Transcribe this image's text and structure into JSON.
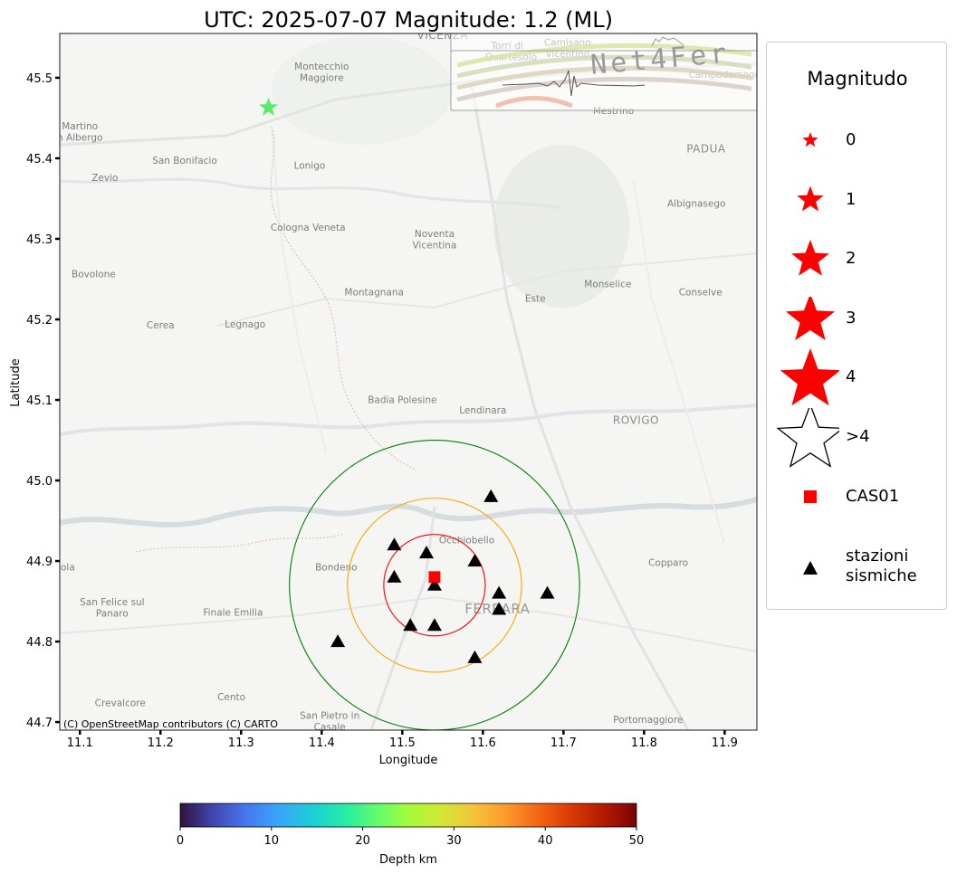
{
  "title": "UTC: 2025-07-07 Magnitude: 1.2 (ML)",
  "axes": {
    "xlabel": "Longitude",
    "ylabel": "Latitude",
    "xlim": [
      11.075,
      11.94
    ],
    "ylim": [
      44.69,
      45.555
    ],
    "xticks": [
      "11.1",
      "11.2",
      "11.3",
      "11.4",
      "11.5",
      "11.6",
      "11.7",
      "11.8",
      "11.9"
    ],
    "yticks": [
      "44.7",
      "44.8",
      "44.9",
      "45.0",
      "45.1",
      "45.2",
      "45.3",
      "45.4",
      "45.5"
    ]
  },
  "attribution": "(C) OpenStreetMap contributors (C) CARTO",
  "watermark": "Net4Fer",
  "map_labels": [
    {
      "text": "VICENZA",
      "lon": 11.55,
      "lat": 45.548
    },
    {
      "text": "Montecchio",
      "lon": 11.4,
      "lat": 45.51
    },
    {
      "text": "Maggiore",
      "lon": 11.4,
      "lat": 45.496
    },
    {
      "text": "Martino",
      "lon": 11.1,
      "lat": 45.436
    },
    {
      "text": "n Albergo",
      "lon": 11.1,
      "lat": 45.422
    },
    {
      "text": "San Bonifacio",
      "lon": 11.23,
      "lat": 45.393
    },
    {
      "text": "Lonigo",
      "lon": 11.385,
      "lat": 45.387
    },
    {
      "text": "Zevio",
      "lon": 11.131,
      "lat": 45.372
    },
    {
      "text": "Torri di",
      "lon": 11.63,
      "lat": 45.536
    },
    {
      "text": "Quartesolo",
      "lon": 11.635,
      "lat": 45.522
    },
    {
      "text": "Camisano",
      "lon": 11.705,
      "lat": 45.54
    },
    {
      "text": "Vicentino",
      "lon": 11.705,
      "lat": 45.526
    },
    {
      "text": "Campodarsego",
      "lon": 11.9,
      "lat": 45.5
    },
    {
      "text": "Mestrino",
      "lon": 11.762,
      "lat": 45.455
    },
    {
      "text": "PADUA",
      "lon": 11.877,
      "lat": 45.407
    },
    {
      "text": "Albignasego",
      "lon": 11.865,
      "lat": 45.34
    },
    {
      "text": "Cologna Veneta",
      "lon": 11.383,
      "lat": 45.31
    },
    {
      "text": "Noventa",
      "lon": 11.54,
      "lat": 45.302
    },
    {
      "text": "Vicentina",
      "lon": 11.54,
      "lat": 45.288
    },
    {
      "text": "Bovolone",
      "lon": 11.117,
      "lat": 45.252
    },
    {
      "text": "Montagnana",
      "lon": 11.465,
      "lat": 45.23
    },
    {
      "text": "Monselice",
      "lon": 11.755,
      "lat": 45.24
    },
    {
      "text": "Este",
      "lon": 11.665,
      "lat": 45.222
    },
    {
      "text": "Conselve",
      "lon": 11.87,
      "lat": 45.23
    },
    {
      "text": "Cerea",
      "lon": 11.2,
      "lat": 45.189
    },
    {
      "text": "Legnago",
      "lon": 11.305,
      "lat": 45.19
    },
    {
      "text": "Badia Polesine",
      "lon": 11.5,
      "lat": 45.096
    },
    {
      "text": "Lendinara",
      "lon": 11.6,
      "lat": 45.083
    },
    {
      "text": "ROVIGO",
      "lon": 11.79,
      "lat": 45.07
    },
    {
      "text": "Occhiobello",
      "lon": 11.58,
      "lat": 44.922
    },
    {
      "text": "Bondeno",
      "lon": 11.418,
      "lat": 44.888
    },
    {
      "text": "Copparo",
      "lon": 11.83,
      "lat": 44.894
    },
    {
      "text": "ola",
      "lon": 11.085,
      "lat": 44.888
    },
    {
      "text": "San Felice sul",
      "lon": 11.14,
      "lat": 44.845
    },
    {
      "text": "Panaro",
      "lon": 11.14,
      "lat": 44.831
    },
    {
      "text": "Finale Emilia",
      "lon": 11.29,
      "lat": 44.832
    },
    {
      "text": "FERRARA",
      "lon": 11.618,
      "lat": 44.835
    },
    {
      "text": "Cento",
      "lon": 11.288,
      "lat": 44.727
    },
    {
      "text": "Crevalcore",
      "lon": 11.15,
      "lat": 44.72
    },
    {
      "text": "San Pietro in",
      "lon": 11.41,
      "lat": 44.704
    },
    {
      "text": "Casale",
      "lon": 11.41,
      "lat": 44.69
    },
    {
      "text": "Portomaggiore",
      "lon": 11.805,
      "lat": 44.699
    }
  ],
  "event": {
    "lon": 11.334,
    "lat": 45.463,
    "magnitude": 1.2,
    "depth_km": 23,
    "color": "#55ee6a"
  },
  "reference_station": {
    "name": "CAS01",
    "lon": 11.54,
    "lat": 44.88,
    "color": "#ff0000"
  },
  "circles": [
    {
      "lon": 11.54,
      "lat": 44.87,
      "radius_deg": 0.063,
      "color": "#ff0000"
    },
    {
      "lon": 11.54,
      "lat": 44.87,
      "radius_deg": 0.108,
      "color": "#ffa500"
    },
    {
      "lon": 11.54,
      "lat": 44.87,
      "radius_deg": 0.18,
      "color": "#008000"
    }
  ],
  "stations": [
    {
      "lon": 11.61,
      "lat": 44.98
    },
    {
      "lon": 11.49,
      "lat": 44.92
    },
    {
      "lon": 11.53,
      "lat": 44.91
    },
    {
      "lon": 11.59,
      "lat": 44.9
    },
    {
      "lon": 11.49,
      "lat": 44.88
    },
    {
      "lon": 11.54,
      "lat": 44.87
    },
    {
      "lon": 11.62,
      "lat": 44.86
    },
    {
      "lon": 11.68,
      "lat": 44.86
    },
    {
      "lon": 11.62,
      "lat": 44.84
    },
    {
      "lon": 11.51,
      "lat": 44.82
    },
    {
      "lon": 11.54,
      "lat": 44.82
    },
    {
      "lon": 11.42,
      "lat": 44.8
    },
    {
      "lon": 11.59,
      "lat": 44.78
    }
  ],
  "colorbar": {
    "label": "Depth km",
    "min": 0,
    "max": 50,
    "ticks": [
      "0",
      "10",
      "20",
      "30",
      "40",
      "50"
    ],
    "colormap": "turbo"
  },
  "legend": {
    "title": "Magnitudo",
    "items": [
      {
        "label": "0",
        "marker": "star",
        "magnitude": 0,
        "color": "#ff0000"
      },
      {
        "label": "1",
        "marker": "star",
        "magnitude": 1,
        "color": "#ff0000"
      },
      {
        "label": "2",
        "marker": "star",
        "magnitude": 2,
        "color": "#ff0000"
      },
      {
        "label": "3",
        "marker": "star",
        "magnitude": 3,
        "color": "#ff0000"
      },
      {
        "label": "4",
        "marker": "star",
        "magnitude": 4,
        "color": "#ff0000"
      },
      {
        "label": ">4",
        "marker": "star-outline",
        "magnitude": 5,
        "color": "#000000"
      },
      {
        "label": "CAS01",
        "marker": "square",
        "color": "#ff0000"
      },
      {
        "label_line1": "stazioni",
        "label_line2": "sismiche",
        "marker": "triangle",
        "color": "#000000"
      }
    ]
  }
}
